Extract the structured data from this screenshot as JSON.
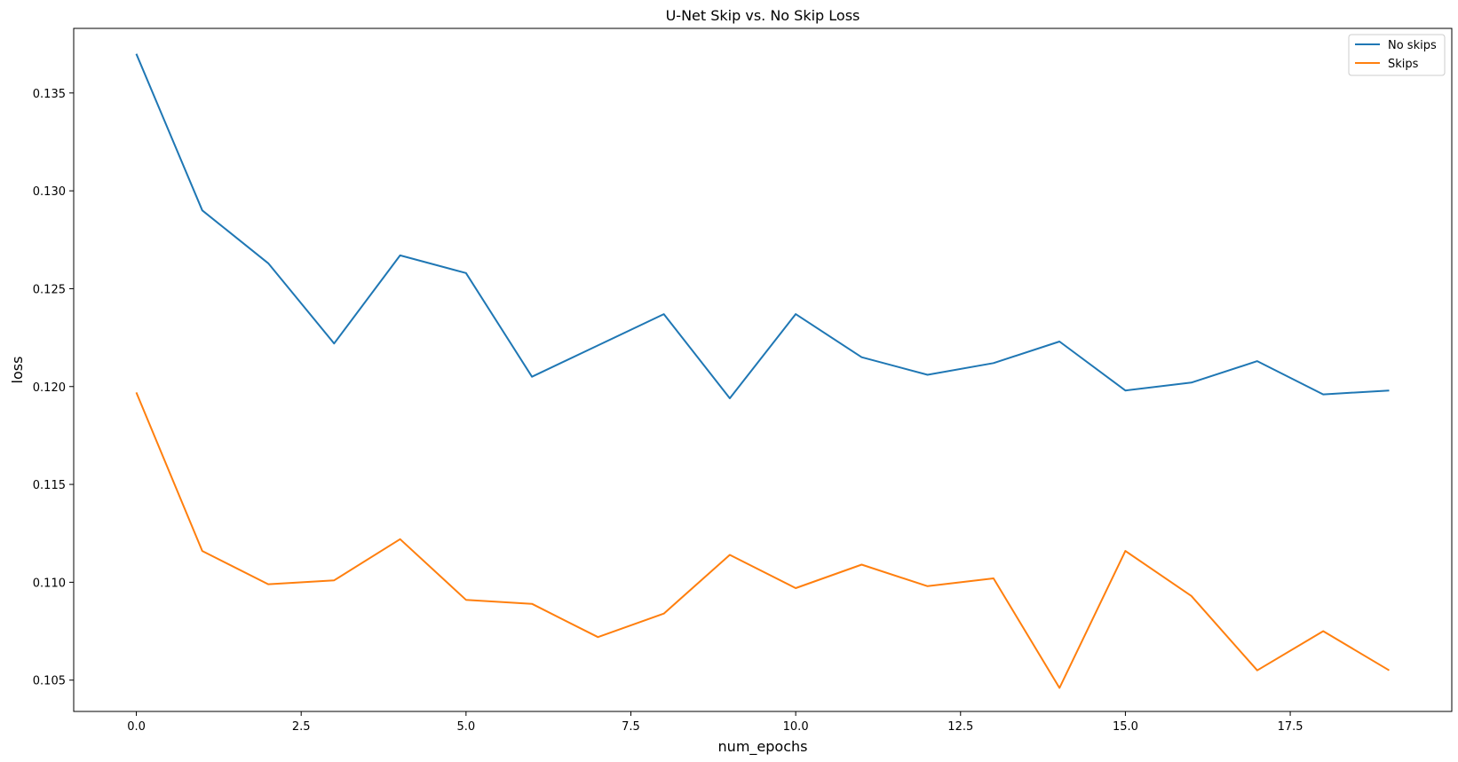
{
  "chart_data": {
    "type": "line",
    "title": "U-Net Skip vs. No Skip Loss",
    "xlabel": "num_epochs",
    "ylabel": "loss",
    "xlim": [
      -0.95,
      19.95
    ],
    "ylim": [
      0.1034,
      0.1383
    ],
    "xticks": [
      0,
      2.5,
      5,
      7.5,
      10,
      12.5,
      15,
      17.5
    ],
    "xtick_labels": [
      "0.0",
      "2.5",
      "5.0",
      "7.5",
      "10.0",
      "12.5",
      "15.0",
      "17.5"
    ],
    "yticks": [
      0.105,
      0.11,
      0.115,
      0.12,
      0.125,
      0.13,
      0.135
    ],
    "ytick_labels": [
      "0.105",
      "0.110",
      "0.115",
      "0.120",
      "0.125",
      "0.130",
      "0.135"
    ],
    "grid": false,
    "legend_position": "top-right",
    "x": [
      0,
      1,
      2,
      3,
      4,
      5,
      6,
      7,
      8,
      9,
      10,
      11,
      12,
      13,
      14,
      15,
      16,
      17,
      18,
      19
    ],
    "series": [
      {
        "name": "No skips",
        "color": "#1f77b4",
        "values": [
          0.137,
          0.129,
          0.1263,
          0.1222,
          0.1267,
          0.1258,
          0.1205,
          0.1221,
          0.1237,
          0.1194,
          0.1237,
          0.1215,
          0.1206,
          0.1212,
          0.1223,
          0.1198,
          0.1202,
          0.1213,
          0.1196,
          0.1198
        ]
      },
      {
        "name": "Skips",
        "color": "#ff7f0e",
        "values": [
          0.1197,
          0.1116,
          0.1099,
          0.1101,
          0.1122,
          0.1091,
          0.1089,
          0.1072,
          0.1084,
          0.1114,
          0.1097,
          0.1109,
          0.1098,
          0.1102,
          0.1046,
          0.1116,
          0.1093,
          0.1055,
          0.1075,
          0.1055
        ]
      }
    ]
  }
}
